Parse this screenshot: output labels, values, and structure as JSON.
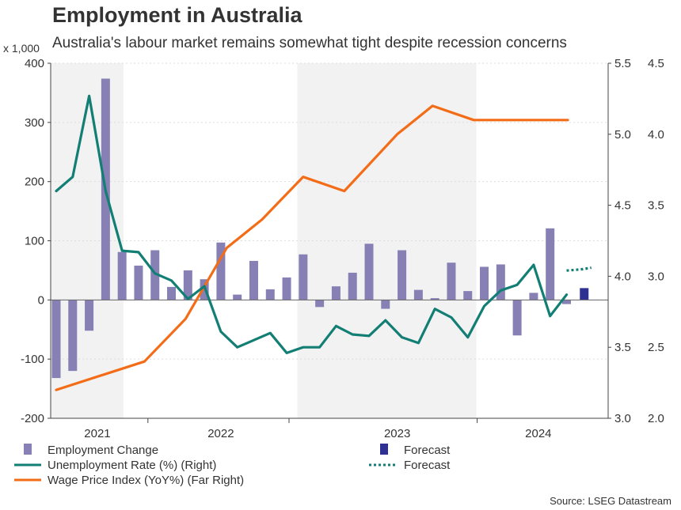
{
  "title": "Employment in Australia",
  "subtitle": "Australia's labour market remains somewhat tight despite recession concerns",
  "unit_label": "x 1,000",
  "source": "Source: LSEG Datastream",
  "colors": {
    "bars": "#8680b4",
    "forecast_bar": "#2e3192",
    "unemployment": "#127e74",
    "wage": "#f36c17",
    "shade": "#f2f2f2",
    "axis": "#444444",
    "grid": "#dddddd"
  },
  "chart_data": {
    "type": "bar",
    "axes": {
      "left": {
        "min": -200,
        "max": 400,
        "ticks": [
          "-200",
          "-100",
          "0",
          "100",
          "200",
          "300",
          "400"
        ]
      },
      "right": {
        "min": 3.0,
        "max": 5.5,
        "ticks": [
          "3.0",
          "3.5",
          "4.0",
          "4.5",
          "5.0",
          "5.5"
        ]
      },
      "far_right": {
        "min": 2.0,
        "max": 4.5,
        "ticks": [
          "2.0",
          "2.5",
          "3.0",
          "3.5",
          "4.0",
          "4.5"
        ]
      }
    },
    "x_range": [
      0,
      46
    ],
    "x_labels": [
      {
        "label": "2021",
        "x": 3.5
      },
      {
        "label": "2022",
        "x": 14
      },
      {
        "label": "2023",
        "x": 29
      },
      {
        "label": "2024",
        "x": 41
      }
    ],
    "year_ticks": [
      8,
      20,
      36
    ],
    "shaded_periods": [
      [
        0,
        6
      ],
      [
        21,
        36
      ]
    ],
    "series": [
      {
        "name": "Employment Change",
        "type": "bar",
        "axis": "left",
        "x": [
          0,
          1.4,
          2.8,
          4.2,
          5.6,
          7,
          8.4,
          9.8,
          11.2,
          12.6,
          14,
          15.4,
          16.8,
          18.2,
          19.6,
          21,
          22.4,
          23.8,
          25.2,
          26.6,
          28,
          29.4,
          30.8,
          32.2,
          33.6,
          35,
          36.4,
          37.8,
          39.2,
          40.6,
          42,
          43.4
        ],
        "values": [
          -132,
          -120,
          -52,
          374,
          81,
          58,
          84,
          22,
          50,
          35,
          97,
          9,
          66,
          18,
          38,
          77,
          -12,
          23,
          46,
          95,
          -15,
          84,
          17,
          3,
          63,
          15,
          56,
          60,
          -60,
          12,
          121,
          -7
        ]
      },
      {
        "name": "Forecast",
        "type": "bar",
        "axis": "left",
        "x": [
          44.9
        ],
        "values": [
          20
        ]
      },
      {
        "name": "Unemployment Rate (%) (Right)",
        "type": "line",
        "axis": "right",
        "x": [
          0,
          1.4,
          2.8,
          4.2,
          5.6,
          7,
          8.4,
          9.8,
          11.2,
          12.6,
          14,
          15.4,
          16.8,
          18.2,
          19.6,
          21,
          22.4,
          23.8,
          25.2,
          26.6,
          28,
          29.4,
          30.8,
          32.2,
          33.6,
          35,
          36.4,
          37.8,
          39.2,
          40.6,
          42,
          43.4
        ],
        "values": [
          4.6,
          4.7,
          5.27,
          4.6,
          4.18,
          4.17,
          4.02,
          3.97,
          3.84,
          3.93,
          3.61,
          3.5,
          3.55,
          3.6,
          3.46,
          3.5,
          3.5,
          3.65,
          3.59,
          3.58,
          3.69,
          3.57,
          3.53,
          3.77,
          3.71,
          3.57,
          3.79,
          3.9,
          3.94,
          4.08,
          3.72,
          3.87
        ]
      },
      {
        "name": "Forecast",
        "type": "line",
        "style": "dotted",
        "axis": "right",
        "x": [
          43.4,
          44.8,
          45.5
        ],
        "values": [
          4.04,
          4.05,
          4.06
        ]
      },
      {
        "name": "Wage Price Index (YoY%) (Far Right)",
        "type": "line",
        "axis": "far_right",
        "x": [
          0,
          7.5,
          11,
          14.5,
          17.5,
          21,
          24.5,
          29,
          32,
          35.5,
          40.5,
          43.5
        ],
        "values": [
          2.2,
          2.4,
          2.7,
          3.2,
          3.4,
          3.7,
          3.6,
          4.0,
          4.2,
          4.1,
          4.1,
          4.1
        ]
      }
    ],
    "legend": {
      "position": "bottom",
      "items": [
        {
          "label": "Employment Change",
          "kind": "bar",
          "series": 0
        },
        {
          "label": "Forecast",
          "kind": "bar",
          "series": 1
        },
        {
          "label": "Unemployment Rate (%) (Right)",
          "kind": "line",
          "series": 2
        },
        {
          "label": "Forecast",
          "kind": "dotted",
          "series": 3
        },
        {
          "label": "Wage Price Index (YoY%) (Far Right)",
          "kind": "line",
          "series": 4
        }
      ]
    }
  }
}
